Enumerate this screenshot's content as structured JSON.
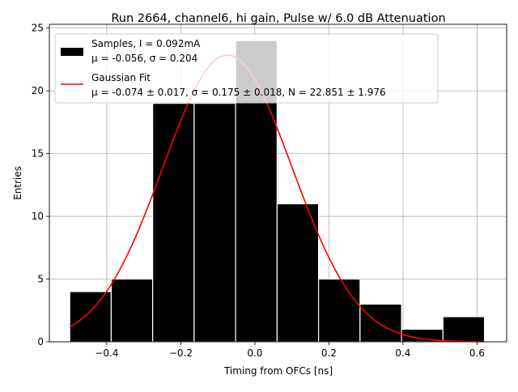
{
  "chart_data": {
    "type": "bar",
    "title": "Run 2664, channel6, hi gain, Pulse w/ 6.0 dB Attenuation",
    "xlabel": "Timing from OFCs [ns]",
    "ylabel": "Entries",
    "xlim": [
      -0.555,
      0.68
    ],
    "ylim": [
      0,
      25.3
    ],
    "xticks": [
      -0.4,
      -0.2,
      0.0,
      0.2,
      0.4,
      0.6
    ],
    "xtick_labels": [
      "−0.4",
      "−0.2",
      "0.0",
      "0.2",
      "0.4",
      "0.6"
    ],
    "yticks": [
      0,
      5,
      10,
      15,
      20,
      25
    ],
    "ytick_labels": [
      "0",
      "5",
      "10",
      "15",
      "20",
      "25"
    ],
    "grid": true,
    "histogram": {
      "bin_edges": [
        -0.5,
        -0.388,
        -0.276,
        -0.164,
        -0.052,
        0.06,
        0.172,
        0.284,
        0.396,
        0.508,
        0.62
      ],
      "counts": [
        4,
        5,
        19,
        19,
        24,
        11,
        5,
        3,
        1,
        2
      ],
      "color": "#000000",
      "edge_color": "#ffffff"
    },
    "fit_curve": {
      "type": "gaussian",
      "mu": -0.074,
      "sigma": 0.175,
      "N": 22.851,
      "x_range": [
        -0.5,
        0.62
      ],
      "color": "#ff0000"
    },
    "legend": {
      "placement": "top-left",
      "entries": [
        {
          "label_line1": "Samples, I = 0.092mA",
          "label_line2": "μ = -0.056, σ = 0.204",
          "style": "patch",
          "color": "#000000"
        },
        {
          "label_line1": "Gaussian Fit",
          "label_line2": "μ = -0.074 ± 0.017, σ = 0.175 ± 0.018, N = 22.851 ± 1.976",
          "style": "line",
          "color": "#ff0000"
        }
      ]
    }
  }
}
